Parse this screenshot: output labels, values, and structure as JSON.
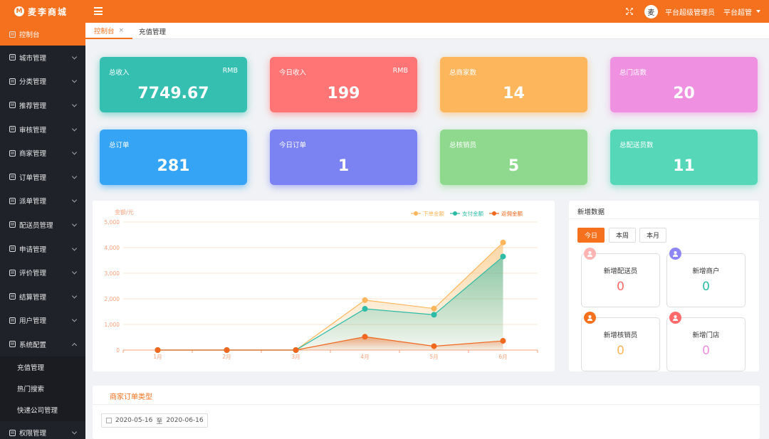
{
  "header": {
    "logo_mark": "M",
    "logo_text": "麦李商城",
    "user_avatar_char": "麦",
    "user_name": "平台超级管理员",
    "role": "平台超管"
  },
  "sidebar": {
    "items": [
      {
        "label": "控制台",
        "icon": "dashboard-icon",
        "active": true
      },
      {
        "label": "城市管理",
        "icon": "city-icon"
      },
      {
        "label": "分类管理",
        "icon": "category-icon"
      },
      {
        "label": "推荐管理",
        "icon": "recommend-icon"
      },
      {
        "label": "审核管理",
        "icon": "audit-icon"
      },
      {
        "label": "商家管理",
        "icon": "merchant-icon"
      },
      {
        "label": "订单管理",
        "icon": "order-icon"
      },
      {
        "label": "派单管理",
        "icon": "dispatch-icon"
      },
      {
        "label": "配送员管理",
        "icon": "courier-icon"
      },
      {
        "label": "申请管理",
        "icon": "application-icon"
      },
      {
        "label": "评价管理",
        "icon": "review-icon"
      },
      {
        "label": "结算管理",
        "icon": "settlement-icon"
      },
      {
        "label": "用户管理",
        "icon": "user-icon"
      },
      {
        "label": "系统配置",
        "icon": "settings-icon",
        "expanded": true
      }
    ],
    "sub_items": [
      "充值管理",
      "热门搜索",
      "快递公司管理"
    ],
    "last_item": {
      "label": "权限管理",
      "icon": "permission-icon"
    }
  },
  "tabs": [
    {
      "label": "控制台",
      "close": "×",
      "active": true
    },
    {
      "label": "充值管理"
    }
  ],
  "stats": [
    {
      "label": "总收入",
      "unit": "RMB",
      "value": "7749.67",
      "color": "#35bfb1"
    },
    {
      "label": "今日收入",
      "unit": "RMB",
      "value": "199",
      "color": "#ff7575"
    },
    {
      "label": "总商家数",
      "unit": "",
      "value": "14",
      "color": "#fdb65c"
    },
    {
      "label": "总门店数",
      "unit": "",
      "value": "20",
      "color": "#ef90e0"
    },
    {
      "label": "总订单",
      "unit": "",
      "value": "281",
      "color": "#35a4f5"
    },
    {
      "label": "今日订单",
      "unit": "",
      "value": "1",
      "color": "#7b83f3"
    },
    {
      "label": "总核销员",
      "unit": "",
      "value": "5",
      "color": "#8ed98e"
    },
    {
      "label": "总配送员数",
      "unit": "",
      "value": "11",
      "color": "#56d7b8"
    }
  ],
  "chart_data": {
    "type": "line",
    "ylabel": "金额/元",
    "categories": [
      "1月",
      "2月",
      "3月",
      "4月",
      "5月",
      "6月"
    ],
    "ylim": [
      0,
      5000
    ],
    "yticks": [
      "0",
      "1,000",
      "2,000",
      "3,000",
      "4,000",
      "5,000"
    ],
    "legend_position": "top-right",
    "series": [
      {
        "name": "下单金额",
        "color": "#fdb65c",
        "values": [
          0,
          0,
          0,
          1950,
          1620,
          4200
        ]
      },
      {
        "name": "支付金额",
        "color": "#2cbba6",
        "values": [
          0,
          0,
          0,
          1610,
          1380,
          3650
        ]
      },
      {
        "name": "返佣金额",
        "color": "#f0681f",
        "values": [
          0,
          0,
          0,
          520,
          150,
          360
        ]
      }
    ]
  },
  "new_data": {
    "title": "新增数据",
    "periods": [
      {
        "label": "今日",
        "active": true
      },
      {
        "label": "本周"
      },
      {
        "label": "本月"
      }
    ],
    "boxes": [
      {
        "label": "新增配送员",
        "value": "0",
        "color": "#ff6b6b",
        "icon": "courier-badge-icon",
        "icon_color": "#ffb3b3"
      },
      {
        "label": "新增商户",
        "value": "0",
        "color": "#2cbba6",
        "icon": "merchant-badge-icon",
        "icon_color": "#8e86f5"
      },
      {
        "label": "新增核销员",
        "value": "0",
        "color": "#fdb65c",
        "icon": "verifier-badge-icon",
        "icon_color": "#f5711d"
      },
      {
        "label": "新增门店",
        "value": "0",
        "color": "#ef90e0",
        "icon": "store-badge-icon",
        "icon_color": "#ff6b6b"
      }
    ]
  },
  "merchant_orders": {
    "title": "商家订单类型",
    "date_start": "2020-05-16",
    "date_sep": "至",
    "date_end": "2020-06-16"
  }
}
